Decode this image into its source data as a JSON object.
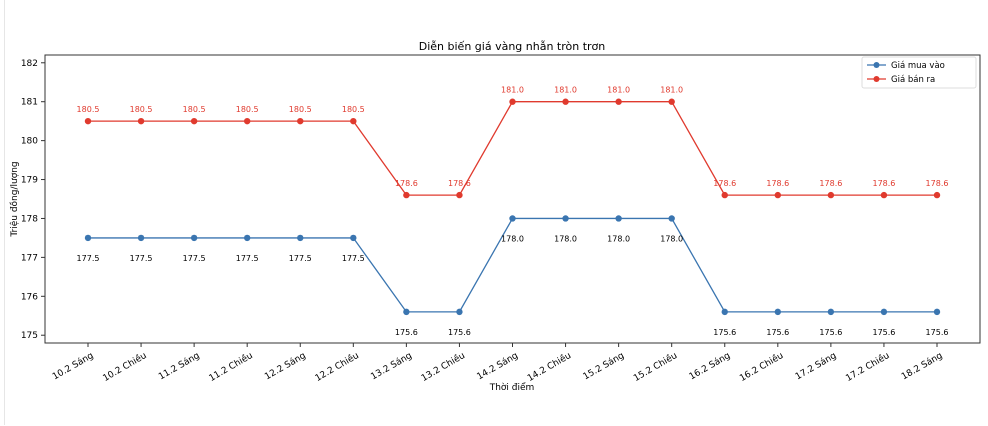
{
  "chart_data": {
    "type": "line",
    "title": "Diễn biến giá vàng nhẫn tròn trơn",
    "xlabel": "Thời điểm",
    "ylabel": "Triệu đồng/lượng",
    "ylim": [
      174.8,
      182.2
    ],
    "yticks": [
      175,
      176,
      177,
      178,
      179,
      180,
      181,
      182
    ],
    "grid": false,
    "legend_position": "top-right",
    "categories": [
      "10.2 Sáng",
      "10.2 Chiều",
      "11.2 Sáng",
      "11.2 Chiều",
      "12.2 Sáng",
      "12.2 Chiều",
      "13.2 Sáng",
      "13.2 Chiều",
      "14.2 Sáng",
      "14.2 Chiều",
      "15.2 Sáng",
      "15.2 Chiều",
      "16.2 Sáng",
      "16.2 Chiều",
      "17.2 Sáng",
      "17.2 Chiều",
      "18.2 Sáng"
    ],
    "series": [
      {
        "name": "Giá mua vào",
        "color": "#3a75b0",
        "label_color": "#000000",
        "values": [
          177.5,
          177.5,
          177.5,
          177.5,
          177.5,
          177.5,
          175.6,
          175.6,
          178.0,
          178.0,
          178.0,
          178.0,
          175.6,
          175.6,
          175.6,
          175.6,
          175.6
        ]
      },
      {
        "name": "Giá bán ra",
        "color": "#e03a2e",
        "label_color": "#e03a2e",
        "values": [
          180.5,
          180.5,
          180.5,
          180.5,
          180.5,
          180.5,
          178.6,
          178.6,
          181.0,
          181.0,
          181.0,
          181.0,
          178.6,
          178.6,
          178.6,
          178.6,
          178.6
        ]
      }
    ]
  }
}
